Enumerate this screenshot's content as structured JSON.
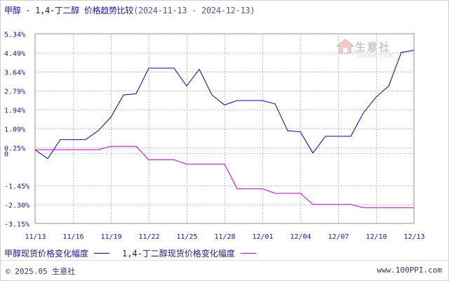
{
  "title": {
    "main": "甲醇 - 1,4-丁二醇 价格趋势比较",
    "range": "(2024-11-13 - 2024-12-13)"
  },
  "watermark": {
    "text": "生意社",
    "url": "100PPI.COM"
  },
  "footer": {
    "copyright": "© 2025.05 生意社",
    "site": "www.100PPI.com"
  },
  "chart_data": {
    "type": "line",
    "ylim": [
      -3.15,
      5.34
    ],
    "y_ticks": [
      5.34,
      4.49,
      3.64,
      2.79,
      1.94,
      1.09,
      0.25,
      0,
      -1.45,
      -2.3,
      -3.15
    ],
    "y_tick_labels": [
      "5.34%",
      "4.49%",
      "3.64%",
      "2.79%",
      "1.94%",
      "1.09%",
      "0.25%",
      "0",
      "-1.45%",
      "-2.30%",
      "-3.15%"
    ],
    "x_tick_labels": [
      "11/13",
      "11/16",
      "11/19",
      "11/22",
      "11/25",
      "11/28",
      "12/01",
      "12/04",
      "12/07",
      "12/10",
      "12/13"
    ],
    "x_tick_days": [
      0,
      3,
      6,
      9,
      12,
      15,
      18,
      21,
      24,
      27,
      30
    ],
    "grid": true,
    "series": [
      {
        "name": "甲醇现货价格变化幅度",
        "color": "#0000cc",
        "points": [
          [
            0,
            0.15
          ],
          [
            1,
            -0.25
          ],
          [
            2,
            0.6
          ],
          [
            3,
            0.6
          ],
          [
            4,
            0.6
          ],
          [
            5,
            1.0
          ],
          [
            6,
            1.6
          ],
          [
            7,
            2.6
          ],
          [
            8,
            2.65
          ],
          [
            9,
            3.8
          ],
          [
            10,
            3.8
          ],
          [
            11,
            3.8
          ],
          [
            12,
            3.0
          ],
          [
            13,
            3.75
          ],
          [
            14,
            2.6
          ],
          [
            15,
            2.15
          ],
          [
            16,
            2.35
          ],
          [
            17,
            2.35
          ],
          [
            18,
            2.35
          ],
          [
            19,
            2.2
          ],
          [
            20,
            1.0
          ],
          [
            21,
            0.95
          ],
          [
            22,
            0.0
          ],
          [
            23,
            0.75
          ],
          [
            24,
            0.75
          ],
          [
            25,
            0.75
          ],
          [
            26,
            1.8
          ],
          [
            27,
            2.5
          ],
          [
            28,
            3.0
          ],
          [
            29,
            4.5
          ],
          [
            30,
            4.6
          ]
        ]
      },
      {
        "name": "1,4-丁二醇现货价格变化幅度",
        "color": "#cc00cc",
        "points": [
          [
            0,
            0.15
          ],
          [
            1,
            0.15
          ],
          [
            2,
            0.15
          ],
          [
            3,
            0.15
          ],
          [
            4,
            0.15
          ],
          [
            5,
            0.15
          ],
          [
            6,
            0.3
          ],
          [
            7,
            0.3
          ],
          [
            8,
            0.3
          ],
          [
            9,
            -0.3
          ],
          [
            10,
            -0.3
          ],
          [
            11,
            -0.3
          ],
          [
            12,
            -0.5
          ],
          [
            13,
            -0.5
          ],
          [
            14,
            -0.5
          ],
          [
            15,
            -0.5
          ],
          [
            16,
            -1.6
          ],
          [
            17,
            -1.6
          ],
          [
            18,
            -1.6
          ],
          [
            19,
            -1.8
          ],
          [
            20,
            -1.8
          ],
          [
            21,
            -1.8
          ],
          [
            22,
            -2.3
          ],
          [
            23,
            -2.3
          ],
          [
            24,
            -2.3
          ],
          [
            25,
            -2.3
          ],
          [
            26,
            -2.45
          ],
          [
            27,
            -2.45
          ],
          [
            28,
            -2.45
          ],
          [
            29,
            -2.45
          ],
          [
            30,
            -2.45
          ]
        ]
      }
    ]
  }
}
